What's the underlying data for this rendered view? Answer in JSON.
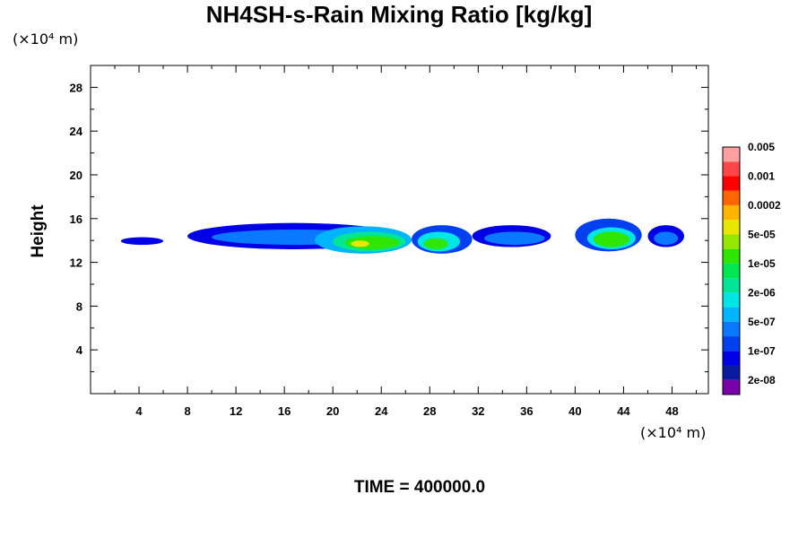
{
  "chart_data": {
    "type": "heatmap",
    "title": "NH4SH-s-Rain Mixing Ratio [kg/kg]",
    "xlabel": "",
    "ylabel": "Height",
    "x_unit": "(×10⁴ m)",
    "y_unit": "(×10⁴ m)",
    "xlim": [
      0,
      51
    ],
    "ylim": [
      0,
      30
    ],
    "x_ticks": [
      4,
      8,
      12,
      16,
      20,
      24,
      28,
      32,
      36,
      40,
      44,
      48
    ],
    "y_ticks": [
      4,
      8,
      12,
      16,
      20,
      24,
      28
    ],
    "grid": false,
    "time_label": "TIME = 400000.0",
    "colorbar": {
      "colors": [
        "#7a00a8",
        "#0a1a9e",
        "#0000e6",
        "#0040f0",
        "#0a78ff",
        "#00b4ff",
        "#00e6e6",
        "#00e696",
        "#00e650",
        "#2ee600",
        "#96e600",
        "#e6e600",
        "#ffb400",
        "#ff6400",
        "#ff0000",
        "#ff4646",
        "#ffa0a0"
      ],
      "labels": [
        "2e-08",
        "1e-07",
        "5e-07",
        "2e-06",
        "1e-05",
        "5e-05",
        "0.0002",
        "0.001",
        "0.005"
      ]
    },
    "regions": [
      {
        "x": [
          2.5,
          6.0
        ],
        "y": [
          13.6,
          14.3
        ],
        "level": 2
      },
      {
        "x": [
          8.0,
          25.5
        ],
        "y": [
          13.2,
          15.6
        ],
        "level": 2
      },
      {
        "x": [
          10.0,
          24.0
        ],
        "y": [
          13.6,
          15.0
        ],
        "level": 4
      },
      {
        "x": [
          18.5,
          26.5
        ],
        "y": [
          12.8,
          15.3
        ],
        "level": 5
      },
      {
        "x": [
          20.0,
          26.0
        ],
        "y": [
          13.0,
          14.8
        ],
        "level": 7
      },
      {
        "x": [
          21.0,
          25.5
        ],
        "y": [
          13.2,
          14.4
        ],
        "level": 9
      },
      {
        "x": [
          21.5,
          23.0
        ],
        "y": [
          13.4,
          14.0
        ],
        "level": 11
      },
      {
        "x": [
          26.5,
          31.5
        ],
        "y": [
          12.8,
          15.4
        ],
        "level": 3
      },
      {
        "x": [
          27.0,
          30.5
        ],
        "y": [
          13.0,
          14.8
        ],
        "level": 6
      },
      {
        "x": [
          27.5,
          29.5
        ],
        "y": [
          13.2,
          14.2
        ],
        "level": 9
      },
      {
        "x": [
          31.5,
          38.0
        ],
        "y": [
          13.4,
          15.4
        ],
        "level": 2
      },
      {
        "x": [
          32.5,
          37.5
        ],
        "y": [
          13.6,
          14.8
        ],
        "level": 4
      },
      {
        "x": [
          40.0,
          45.5
        ],
        "y": [
          13.0,
          16.0
        ],
        "level": 3
      },
      {
        "x": [
          41.0,
          45.0
        ],
        "y": [
          13.2,
          15.2
        ],
        "level": 6
      },
      {
        "x": [
          41.5,
          44.5
        ],
        "y": [
          13.4,
          14.8
        ],
        "level": 9
      },
      {
        "x": [
          46.0,
          49.0
        ],
        "y": [
          13.4,
          15.4
        ],
        "level": 2
      },
      {
        "x": [
          46.5,
          48.5
        ],
        "y": [
          13.6,
          14.8
        ],
        "level": 4
      }
    ]
  }
}
